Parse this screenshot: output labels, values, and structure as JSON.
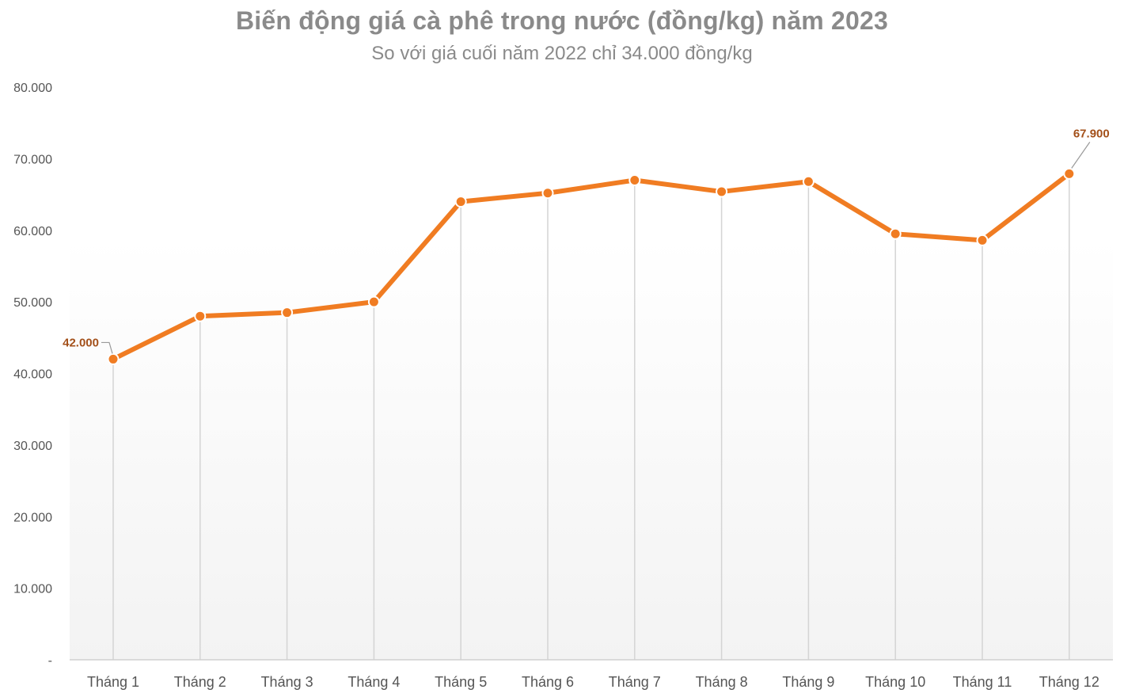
{
  "chart_data": {
    "type": "line",
    "title": "Biến động giá cà phê trong nước (đồng/kg) năm 2023",
    "subtitle": "So với giá cuối năm 2022 chỉ 34.000 đồng/kg",
    "categories": [
      "Tháng 1",
      "Tháng 2",
      "Tháng 3",
      "Tháng 4",
      "Tháng 5",
      "Tháng 6",
      "Tháng 7",
      "Tháng 8",
      "Tháng 9",
      "Tháng 10",
      "Tháng 11",
      "Tháng 12"
    ],
    "series": [
      {
        "values": [
          42000,
          48000,
          48500,
          50000,
          64000,
          65200,
          67000,
          65400,
          66800,
          59500,
          58600,
          67900
        ]
      }
    ],
    "ylim": [
      0,
      80000
    ],
    "y_ticks": [
      0,
      10000,
      20000,
      30000,
      40000,
      50000,
      60000,
      70000,
      80000
    ],
    "y_tick_labels": [
      "-",
      "10.000",
      "20.000",
      "30.000",
      "40.000",
      "50.000",
      "60.000",
      "70.000",
      "80.000"
    ],
    "data_labels": [
      {
        "index": 0,
        "text": "42.000"
      },
      {
        "index": 11,
        "text": "67.900"
      }
    ],
    "xlabel": "",
    "ylabel": "",
    "grid": "vertical drop lines at each category",
    "legend": "none",
    "colors": {
      "line": "#f07c22",
      "marker_stroke": "#ffffff",
      "label": "#a3501a",
      "dropline": "#d4d4d4",
      "axis": "#d0d0d0",
      "title": "#8a8a8a",
      "background_fade": "#f3f3f3"
    }
  }
}
